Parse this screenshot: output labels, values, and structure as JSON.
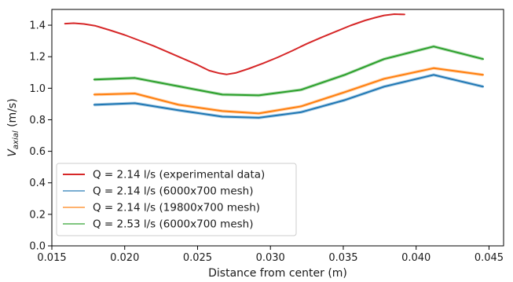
{
  "chart_data": {
    "type": "line",
    "title": "",
    "xlabel": "Distance from center (m)",
    "ylabel": "V",
    "ylabel_sub": "axial",
    "ylabel_unit": " (m/s)",
    "xlim": [
      0.015,
      0.046
    ],
    "ylim": [
      0.0,
      1.5
    ],
    "xticks": [
      "0.015",
      "0.020",
      "0.025",
      "0.030",
      "0.035",
      "0.040",
      "0.045"
    ],
    "xtick_values": [
      0.015,
      0.02,
      0.025,
      0.03,
      0.035,
      0.04,
      0.045
    ],
    "yticks": [
      "0.0",
      "0.2",
      "0.4",
      "0.6",
      "0.8",
      "1.0",
      "1.2",
      "1.4"
    ],
    "ytick_values": [
      0.0,
      0.2,
      0.4,
      0.6,
      0.8,
      1.0,
      1.2,
      1.4
    ],
    "grid": false,
    "legend_position": "lower-left",
    "series": [
      {
        "name": "Q = 2.14 l/s (experimental data)",
        "color": "#d62728",
        "x": [
          0.0159,
          0.0165,
          0.0172,
          0.018,
          0.019,
          0.02,
          0.021,
          0.022,
          0.023,
          0.024,
          0.025,
          0.0258,
          0.0265,
          0.027,
          0.0276,
          0.0285,
          0.0295,
          0.0305,
          0.0315,
          0.0325,
          0.0335,
          0.0345,
          0.0355,
          0.0365,
          0.0372,
          0.0378,
          0.0385,
          0.0392
        ],
        "y": [
          1.41,
          1.413,
          1.408,
          1.396,
          1.368,
          1.338,
          1.303,
          1.268,
          1.228,
          1.188,
          1.148,
          1.112,
          1.095,
          1.088,
          1.097,
          1.124,
          1.158,
          1.196,
          1.238,
          1.282,
          1.322,
          1.36,
          1.398,
          1.43,
          1.448,
          1.462,
          1.47,
          1.468
        ]
      },
      {
        "name": "Q = 2.14 l/s (6000x700 mesh)",
        "color": "#1f77b4",
        "x": [
          0.0179,
          0.0207,
          0.0237,
          0.0267,
          0.0292,
          0.0321,
          0.0351,
          0.0378,
          0.0412,
          0.0446
        ],
        "y": [
          0.895,
          0.905,
          0.86,
          0.82,
          0.813,
          0.848,
          0.925,
          1.01,
          1.085,
          1.01
        ]
      },
      {
        "name": "Q = 2.14 l/s (19800x700 mesh)",
        "color": "#ff7f0e",
        "x": [
          0.0179,
          0.0207,
          0.0237,
          0.0267,
          0.0292,
          0.0321,
          0.0351,
          0.0378,
          0.0412,
          0.0446
        ],
        "y": [
          0.96,
          0.967,
          0.895,
          0.855,
          0.84,
          0.885,
          0.975,
          1.06,
          1.127,
          1.085
        ]
      },
      {
        "name": "Q = 2.53 l/s (6000x700 mesh)",
        "color": "#2ca02c",
        "x": [
          0.0179,
          0.0207,
          0.0237,
          0.0267,
          0.0292,
          0.0321,
          0.0351,
          0.0378,
          0.0412,
          0.0446
        ],
        "y": [
          1.055,
          1.065,
          1.012,
          0.96,
          0.955,
          0.99,
          1.085,
          1.185,
          1.265,
          1.185
        ]
      }
    ]
  }
}
